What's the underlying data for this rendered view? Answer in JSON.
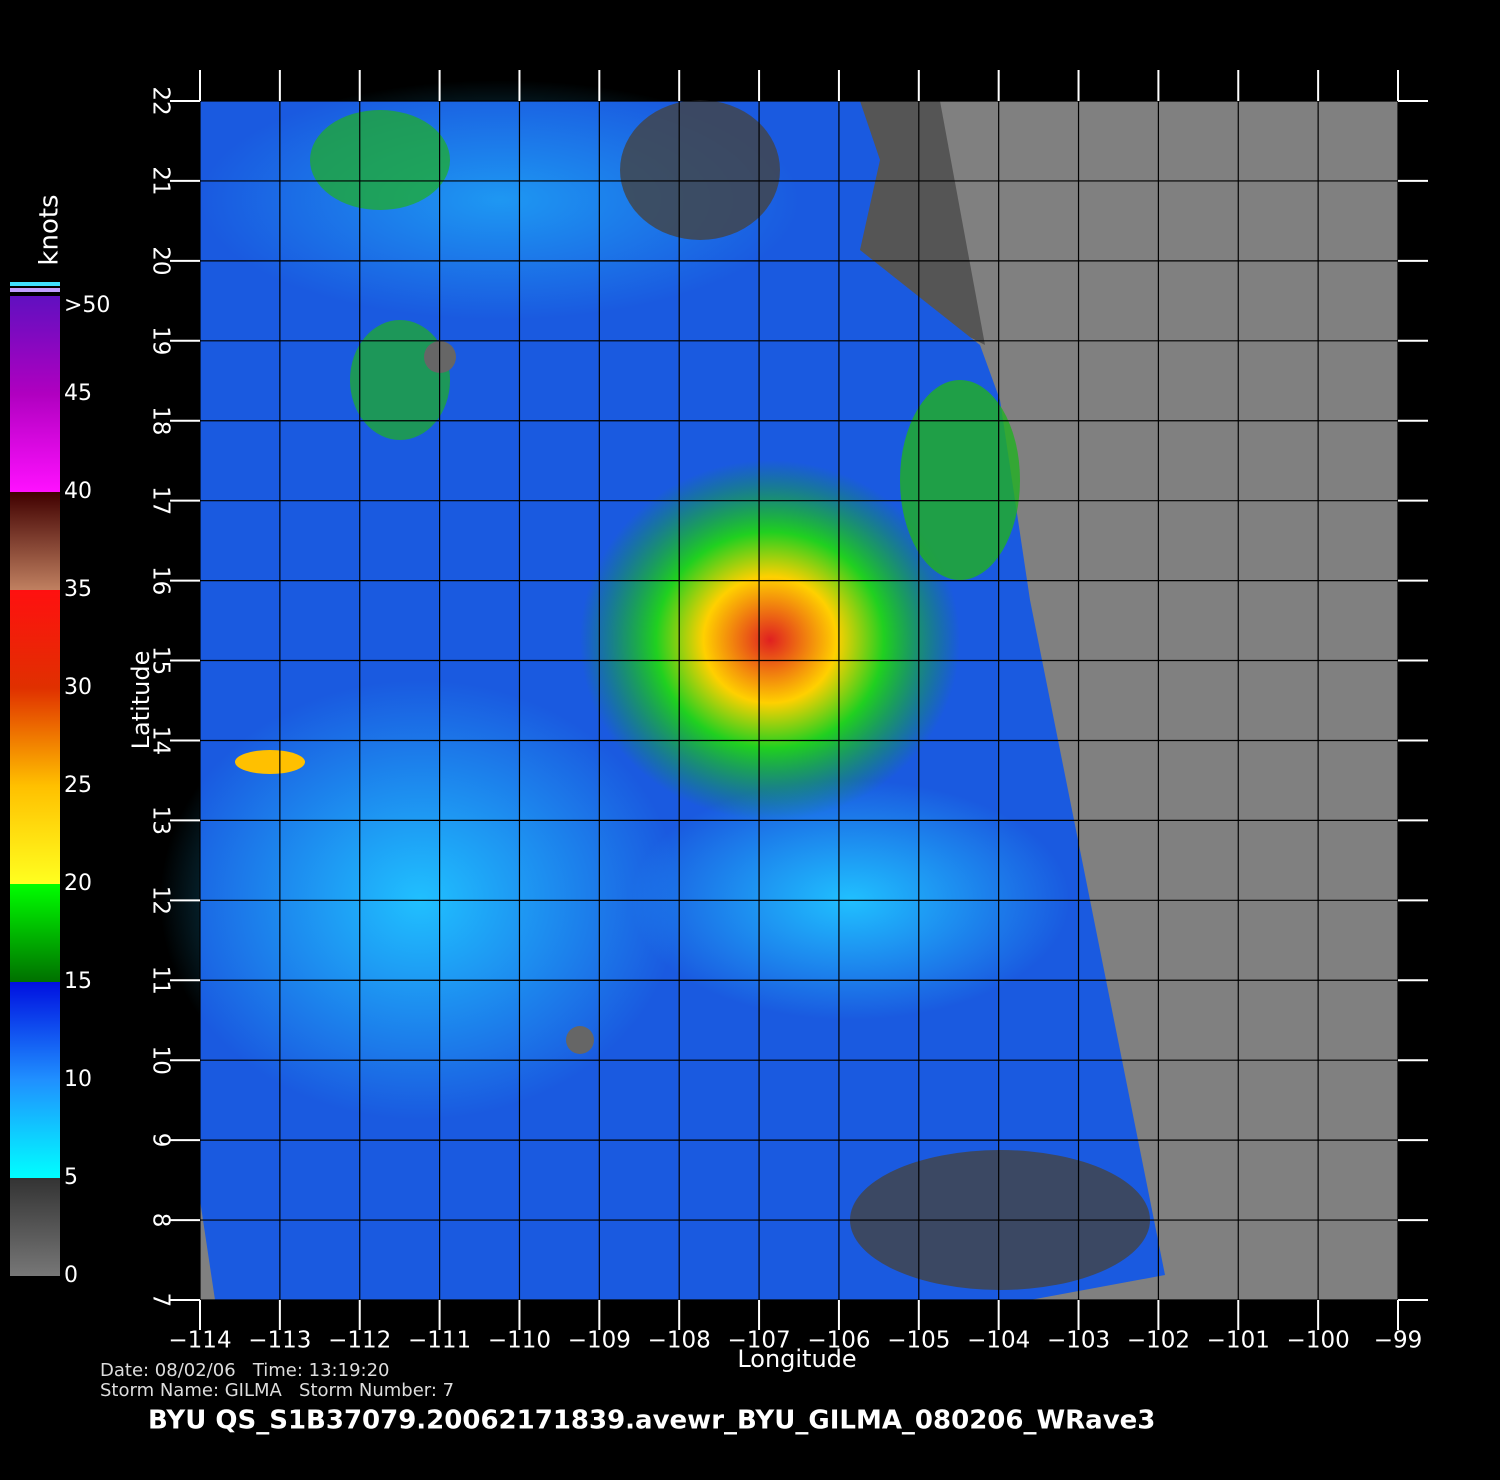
{
  "map": {
    "xaxis": {
      "label": "Longitude",
      "lim": [
        -114,
        -99
      ],
      "ticks": [
        {
          "value": -114,
          "label": "−114"
        },
        {
          "value": -113,
          "label": "−113"
        },
        {
          "value": -112,
          "label": "−112"
        },
        {
          "value": -111,
          "label": "−111"
        },
        {
          "value": -110,
          "label": "−110"
        },
        {
          "value": -109,
          "label": "−109"
        },
        {
          "value": -108,
          "label": "−108"
        },
        {
          "value": -107,
          "label": "−107"
        },
        {
          "value": -106,
          "label": "−106"
        },
        {
          "value": -105,
          "label": "−105"
        },
        {
          "value": -104,
          "label": "−104"
        },
        {
          "value": -103,
          "label": "−103"
        },
        {
          "value": -102,
          "label": "−102"
        },
        {
          "value": -101,
          "label": "−101"
        },
        {
          "value": -100,
          "label": "−100"
        },
        {
          "value": -99,
          "label": "−99"
        }
      ]
    },
    "yaxis": {
      "label": "Latitude",
      "lim": [
        7,
        22
      ],
      "ticks": [
        7,
        8,
        9,
        10,
        11,
        12,
        13,
        14,
        15,
        16,
        17,
        18,
        19,
        20,
        21,
        22
      ]
    },
    "colorbar": {
      "label": "knots",
      "lim": [
        0,
        50
      ],
      "ticks": [
        0,
        5,
        10,
        15,
        20,
        25,
        30,
        35,
        40,
        45,
        {
          "value": 50,
          "label": ">50"
        }
      ]
    },
    "info": {
      "line1": "Date: 08/02/06   Time: 13:19:20",
      "line2": "Storm Name: GILMA   Storm Number: 7",
      "footer": "BYU  QS_S1B37079.20062171839.avewr_BYU_GILMA_080206_WRave3"
    }
  }
}
